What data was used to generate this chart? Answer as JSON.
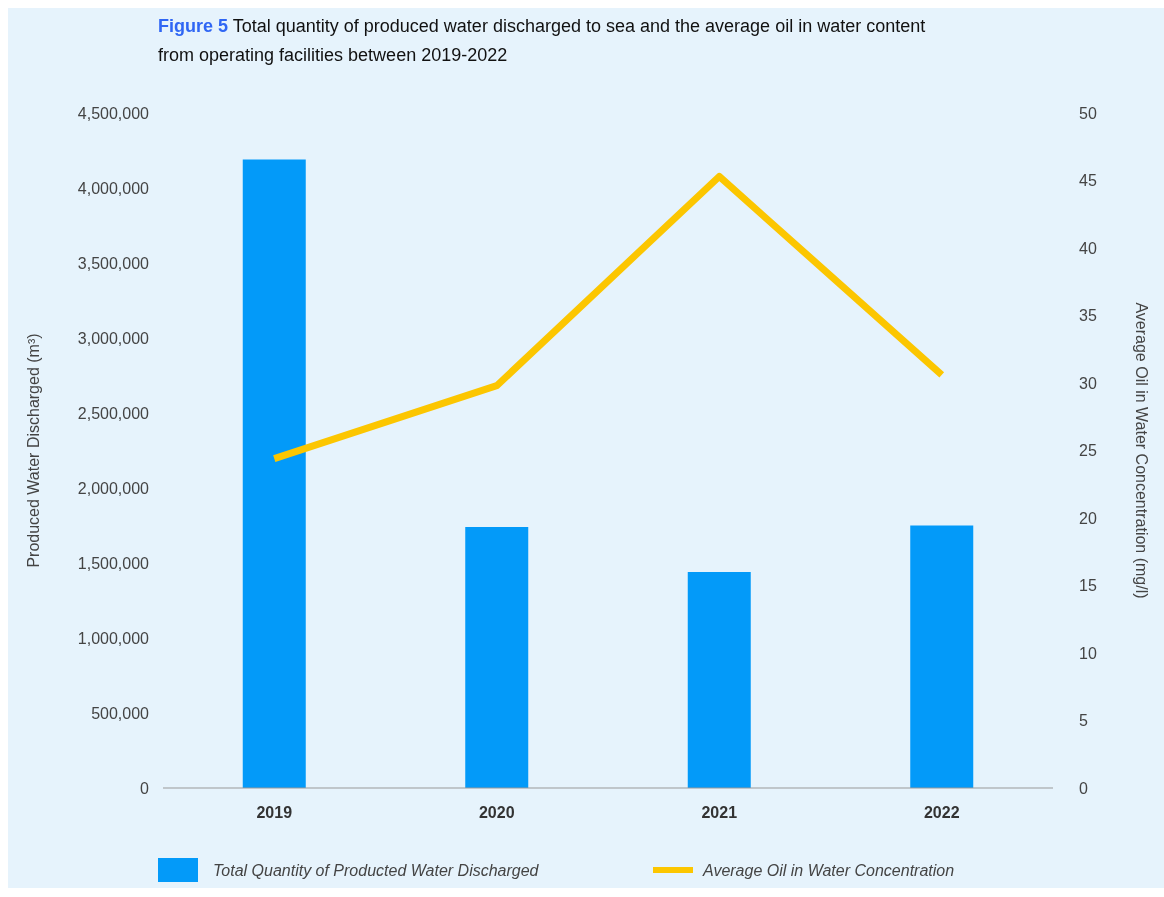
{
  "chart_data": {
    "type": "bar",
    "title": "Figure 5 Total quantity of produced water discharged to sea and the average oil in water content from operating facilities between 2019-2022",
    "categories": [
      "2019",
      "2020",
      "2021",
      "2022"
    ],
    "series": [
      {
        "name": "Total Quantity of Producted Water Discharged",
        "color": "#039af9",
        "values": [
          4190000,
          1740000,
          1440000,
          1750000
        ]
      },
      {
        "name": "Average Oil in Water Concentration",
        "type": "line",
        "axis": "y2",
        "color": "#fcc600",
        "values": [
          24.4,
          29.8,
          45.3,
          30.6
        ]
      }
    ],
    "ylabel": "Produced Water Discharged (m³)",
    "y2label": "Average Oil in Water Concentration (mg/l)",
    "ylim": [
      0,
      4500000
    ],
    "yticks": [
      {
        "value": 0,
        "label": "0"
      },
      {
        "value": 500000,
        "label": "500,000"
      },
      {
        "value": 1000000,
        "label": "1,000,000"
      },
      {
        "value": 1500000,
        "label": "1,500,000"
      },
      {
        "value": 2000000,
        "label": "2,000,000"
      },
      {
        "value": 2500000,
        "label": "2,500,000"
      },
      {
        "value": 3000000,
        "label": "3,000,000"
      },
      {
        "value": 3500000,
        "label": "3,500,000"
      },
      {
        "value": 4000000,
        "label": "4,000,000"
      },
      {
        "value": 4500000,
        "label": "4,500,000"
      }
    ],
    "y2lim": [
      0,
      50
    ],
    "y2ticks": [
      0,
      5,
      10,
      15,
      20,
      25,
      30,
      35,
      40,
      45,
      50
    ],
    "grid": false,
    "legend": "bottom",
    "marker": "none"
  }
}
